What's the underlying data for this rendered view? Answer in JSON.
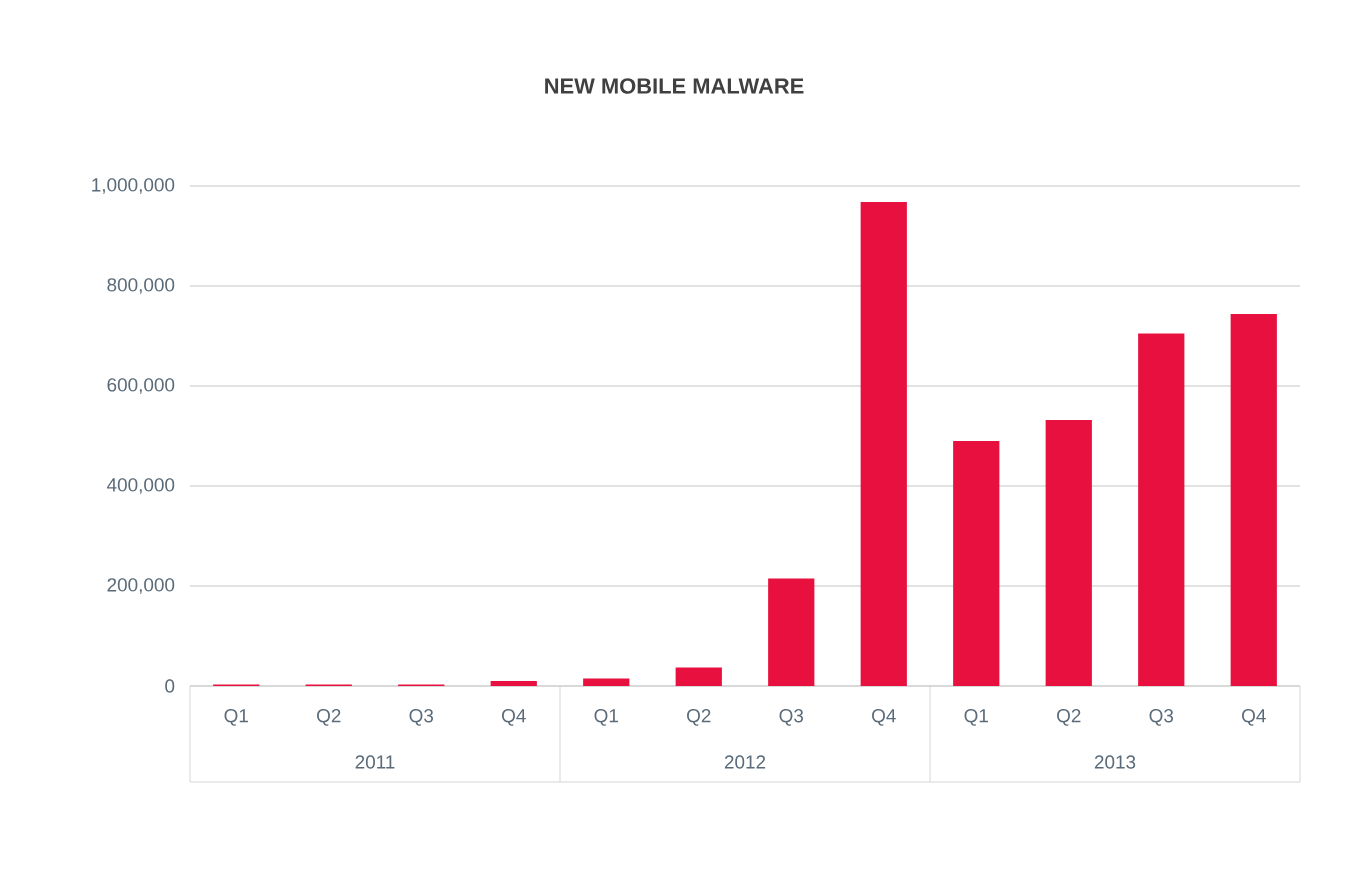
{
  "chart_data": {
    "type": "bar",
    "title": "NEW MOBILE MALWARE",
    "categories": [
      "Q1",
      "Q2",
      "Q3",
      "Q4",
      "Q1",
      "Q2",
      "Q3",
      "Q4",
      "Q1",
      "Q2",
      "Q3",
      "Q4"
    ],
    "values": [
      3000,
      3000,
      3000,
      10000,
      15000,
      37000,
      215000,
      968000,
      490000,
      532000,
      705000,
      744000
    ],
    "color": "#e8103f",
    "ylim": [
      0,
      1000000
    ],
    "yticks": [
      {
        "value": 0,
        "label": "0"
      },
      {
        "value": 200000,
        "label": "200,000"
      },
      {
        "value": 400000,
        "label": "400,000"
      },
      {
        "value": 600000,
        "label": "600,000"
      },
      {
        "value": 800000,
        "label": "800,000"
      },
      {
        "value": 1000000,
        "label": "1,000,000"
      }
    ],
    "annotations": [
      "2011",
      "2012",
      "2013"
    ],
    "grid": "y"
  }
}
